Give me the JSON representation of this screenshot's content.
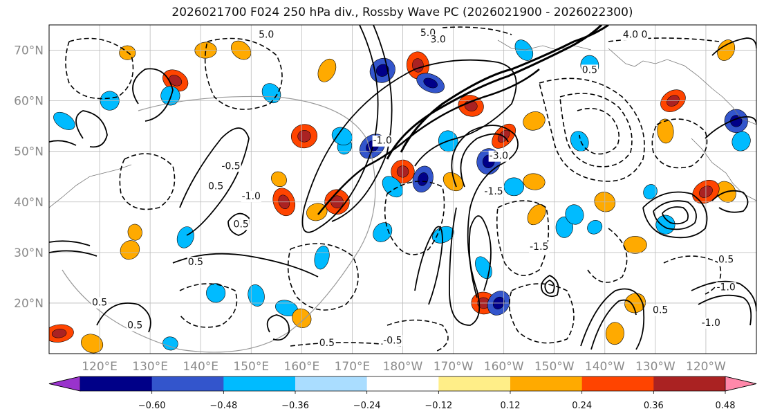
{
  "title": "2026021700 F024 250 hPa div., Rossby Wave PC (2026021900 - 2026022300)",
  "map": {
    "lon_min": 110,
    "lon_max": 250,
    "lat_min": 10,
    "lat_max": 75,
    "lat_ticks": [
      {
        "value": 20,
        "label": "20°N"
      },
      {
        "value": 30,
        "label": "30°N"
      },
      {
        "value": 40,
        "label": "40°N"
      },
      {
        "value": 50,
        "label": "50°N"
      },
      {
        "value": 60,
        "label": "60°N"
      },
      {
        "value": 70,
        "label": "70°N"
      }
    ],
    "lon_ticks": [
      {
        "value": 120,
        "label": "120°E"
      },
      {
        "value": 130,
        "label": "130°E"
      },
      {
        "value": 140,
        "label": "140°E"
      },
      {
        "value": 150,
        "label": "150°E"
      },
      {
        "value": 160,
        "label": "160°E"
      },
      {
        "value": 170,
        "label": "170°E"
      },
      {
        "value": 180,
        "label": "180°W"
      },
      {
        "value": 190,
        "label": "170°W"
      },
      {
        "value": 200,
        "label": "160°W"
      },
      {
        "value": 210,
        "label": "150°W"
      },
      {
        "value": 220,
        "label": "140°W"
      },
      {
        "value": 230,
        "label": "130°W"
      },
      {
        "value": 240,
        "label": "120°W"
      }
    ],
    "grid": true,
    "contour_labels": [
      {
        "text": "5.0",
        "lon": 153,
        "lat": 72.5
      },
      {
        "text": "5.0",
        "lon": 185,
        "lat": 72.8
      },
      {
        "text": "3.0",
        "lon": 187,
        "lat": 71.5
      },
      {
        "text": "4.0 0",
        "lon": 226,
        "lat": 72.5
      },
      {
        "text": "-1.0",
        "lon": 176,
        "lat": 51.5
      },
      {
        "text": "-0.5",
        "lon": 146,
        "lat": 46.5
      },
      {
        "text": "0.5",
        "lon": 143,
        "lat": 42.5
      },
      {
        "text": "-1.0",
        "lon": 150,
        "lat": 40.5
      },
      {
        "text": "0.5",
        "lon": 148,
        "lat": 35.0
      },
      {
        "text": "-3.0",
        "lon": 199,
        "lat": 48.5
      },
      {
        "text": "-1.5",
        "lon": 198,
        "lat": 41.5
      },
      {
        "text": "0.5",
        "lon": 139,
        "lat": 27.5
      },
      {
        "text": "0.5",
        "lon": 120,
        "lat": 19.5
      },
      {
        "text": "0.5",
        "lon": 127,
        "lat": 15.0
      },
      {
        "text": "-0.5",
        "lon": 178,
        "lat": 12.0
      },
      {
        "text": "0.5",
        "lon": 165,
        "lat": 11.5
      },
      {
        "text": "-1.5",
        "lon": 207,
        "lat": 30.5
      },
      {
        "text": "0.5",
        "lon": 231,
        "lat": 18.0
      },
      {
        "text": "-1.0",
        "lon": 241,
        "lat": 15.5
      },
      {
        "text": "0.5",
        "lon": 244,
        "lat": 28.0
      },
      {
        "text": "-1.0",
        "lon": 244,
        "lat": 22.5
      },
      {
        "text": "0.5",
        "lon": 217,
        "lat": 65.5
      }
    ]
  },
  "colorbar": {
    "colors": [
      "#9933cc",
      "#000088",
      "#3355cc",
      "#00bbff",
      "#aaddff",
      "#ffffff",
      "#ffee88",
      "#ffaa00",
      "#ff4400",
      "#aa2222",
      "#ff88aa"
    ],
    "boundaries": [
      -0.6,
      -0.48,
      -0.36,
      -0.24,
      -0.12,
      0.12,
      0.24,
      0.36,
      0.48,
      0.6
    ],
    "tick_labels": [
      "−0.60",
      "−0.48",
      "−0.36",
      "−0.24",
      "−0.12",
      "0.12",
      "0.24",
      "0.36",
      "0.48",
      "0.60"
    ],
    "extend": "both"
  },
  "shaded_divergence": [
    {
      "lon": 125.5,
      "lat": 69.5,
      "value": 0.3
    },
    {
      "lon": 135.0,
      "lat": 64.0,
      "value": 0.4
    },
    {
      "lon": 134.0,
      "lat": 61.0,
      "value": -0.26
    },
    {
      "lon": 141.0,
      "lat": 70.0,
      "value": 0.26
    },
    {
      "lon": 165.0,
      "lat": 66.0,
      "value": 0.3
    },
    {
      "lon": 176.0,
      "lat": 66.0,
      "value": -0.45
    },
    {
      "lon": 183.0,
      "lat": 67.0,
      "value": 0.45
    },
    {
      "lon": 185.5,
      "lat": 63.5,
      "value": -0.4
    },
    {
      "lon": 154.0,
      "lat": 61.5,
      "value": -0.26
    },
    {
      "lon": 160.5,
      "lat": 53.0,
      "value": 0.45
    },
    {
      "lon": 168.5,
      "lat": 51.0,
      "value": -0.3
    },
    {
      "lon": 174.0,
      "lat": 51.0,
      "value": -0.45
    },
    {
      "lon": 180.0,
      "lat": 46.0,
      "value": 0.4
    },
    {
      "lon": 184.0,
      "lat": 44.5,
      "value": -0.4
    },
    {
      "lon": 178.0,
      "lat": 43.0,
      "value": -0.3
    },
    {
      "lon": 189.0,
      "lat": 52.0,
      "value": -0.3
    },
    {
      "lon": 193.5,
      "lat": 59.0,
      "value": 0.4
    },
    {
      "lon": 200.0,
      "lat": 53.0,
      "value": 0.4
    },
    {
      "lon": 206.0,
      "lat": 56.0,
      "value": 0.3
    },
    {
      "lon": 197.0,
      "lat": 48.0,
      "value": -0.45
    },
    {
      "lon": 155.5,
      "lat": 44.5,
      "value": 0.3
    },
    {
      "lon": 156.5,
      "lat": 40.0,
      "value": 0.45
    },
    {
      "lon": 167.0,
      "lat": 40.0,
      "value": 0.45
    },
    {
      "lon": 190.0,
      "lat": 44.0,
      "value": 0.26
    },
    {
      "lon": 188.0,
      "lat": 33.5,
      "value": -0.26
    },
    {
      "lon": 196.0,
      "lat": 20.0,
      "value": 0.4
    },
    {
      "lon": 199.0,
      "lat": 20.0,
      "value": -0.4
    },
    {
      "lon": 196.0,
      "lat": 27.0,
      "value": -0.26
    },
    {
      "lon": 212.0,
      "lat": 35.0,
      "value": -0.26
    },
    {
      "lon": 220.0,
      "lat": 40.0,
      "value": 0.3
    },
    {
      "lon": 218.0,
      "lat": 35.0,
      "value": -0.26
    },
    {
      "lon": 226.0,
      "lat": 31.5,
      "value": 0.3
    },
    {
      "lon": 232.0,
      "lat": 35.5,
      "value": -0.26
    },
    {
      "lon": 233.5,
      "lat": 60.0,
      "value": 0.4
    },
    {
      "lon": 232.0,
      "lat": 54.0,
      "value": 0.3
    },
    {
      "lon": 247.0,
      "lat": 52.0,
      "value": -0.26
    },
    {
      "lon": 244.0,
      "lat": 42.0,
      "value": 0.3
    },
    {
      "lon": 112.0,
      "lat": 14.0,
      "value": 0.4
    },
    {
      "lon": 118.5,
      "lat": 12.0,
      "value": 0.3
    },
    {
      "lon": 126.0,
      "lat": 30.5,
      "value": 0.26
    },
    {
      "lon": 127.0,
      "lat": 34.0,
      "value": 0.3
    },
    {
      "lon": 137.0,
      "lat": 33.0,
      "value": -0.26
    },
    {
      "lon": 143.0,
      "lat": 22.0,
      "value": -0.26
    },
    {
      "lon": 151.0,
      "lat": 21.5,
      "value": -0.26
    },
    {
      "lon": 157.0,
      "lat": 19.0,
      "value": -0.26
    },
    {
      "lon": 160.0,
      "lat": 17.0,
      "value": 0.26
    },
    {
      "lon": 163.0,
      "lat": 38.0,
      "value": 0.26
    },
    {
      "lon": 164.0,
      "lat": 29.0,
      "value": -0.26
    },
    {
      "lon": 176.0,
      "lat": 34.0,
      "value": -0.26
    },
    {
      "lon": 214.0,
      "lat": 37.5,
      "value": -0.26
    },
    {
      "lon": 134.0,
      "lat": 12.0,
      "value": -0.26
    },
    {
      "lon": 148.0,
      "lat": 70.0,
      "value": 0.26
    },
    {
      "lon": 122.0,
      "lat": 60.0,
      "value": -0.26
    },
    {
      "lon": 206.0,
      "lat": 44.0,
      "value": 0.26
    },
    {
      "lon": 206.5,
      "lat": 37.5,
      "value": 0.26
    },
    {
      "lon": 226.0,
      "lat": 20.0,
      "value": 0.3
    },
    {
      "lon": 222.0,
      "lat": 14.0,
      "value": 0.3
    },
    {
      "lon": 113.0,
      "lat": 56.0,
      "value": -0.26
    },
    {
      "lon": 215.0,
      "lat": 52.0,
      "value": -0.26
    },
    {
      "lon": 202.0,
      "lat": 43.0,
      "value": -0.26
    },
    {
      "lon": 229.0,
      "lat": 42.0,
      "value": -0.26
    },
    {
      "lon": 240.0,
      "lat": 42.0,
      "value": 0.45
    },
    {
      "lon": 246.0,
      "lat": 56.0,
      "value": -0.4
    },
    {
      "lon": 244.0,
      "lat": 70.0,
      "value": 0.26
    },
    {
      "lon": 204.0,
      "lat": 70.0,
      "value": -0.26
    },
    {
      "lon": 217.0,
      "lat": 67.0,
      "value": -0.26
    },
    {
      "lon": 168.0,
      "lat": 53.0,
      "value": -0.26
    }
  ]
}
